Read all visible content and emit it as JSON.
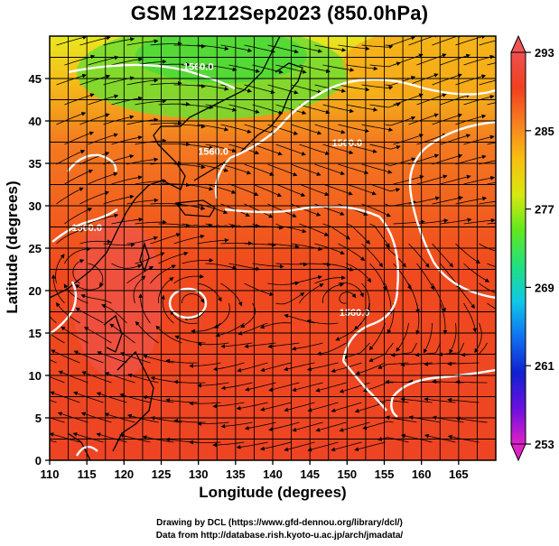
{
  "chart_data": {
    "type": "heatmap",
    "title": "GSM 12Z12Sep2023 (850.0hPa)",
    "xlabel": "Longitude (degrees)",
    "ylabel": "Latitude  (degrees)",
    "xlim": [
      110,
      170
    ],
    "ylim": [
      0,
      50
    ],
    "x_ticks": [
      110,
      115,
      120,
      125,
      130,
      135,
      140,
      145,
      150,
      155,
      160,
      165
    ],
    "y_ticks": [
      0,
      5,
      10,
      15,
      20,
      25,
      30,
      35,
      40,
      45
    ],
    "grid": true,
    "colorbar": {
      "min": 253,
      "max": 293,
      "ticks": [
        293,
        285,
        277,
        269,
        261,
        253
      ],
      "position": "right",
      "colors": [
        "#e020c8",
        "#6a10e0",
        "#1020d0",
        "#1070f0",
        "#10c8e8",
        "#20e080",
        "#60e820",
        "#d8e810",
        "#f8c010",
        "#f88020",
        "#f04020",
        "#f05050"
      ]
    },
    "contour_labels": [
      {
        "text": "1560.0",
        "lon": 130,
        "lat": 46
      },
      {
        "text": "1560.0",
        "lon": 132,
        "lat": 36
      },
      {
        "text": "1560.0",
        "lon": 150,
        "lat": 37
      },
      {
        "text": "1560.0",
        "lon": 115,
        "lat": 27
      },
      {
        "text": "1560.0",
        "lon": 151,
        "lat": 17
      }
    ]
  },
  "credits": {
    "line1": "Drawing by DCL (https://www.gfd-dennou.org/library/dcl/)",
    "line2": "Data from http://database.rish.kyoto-u.ac.jp/arch/jmadata/"
  }
}
